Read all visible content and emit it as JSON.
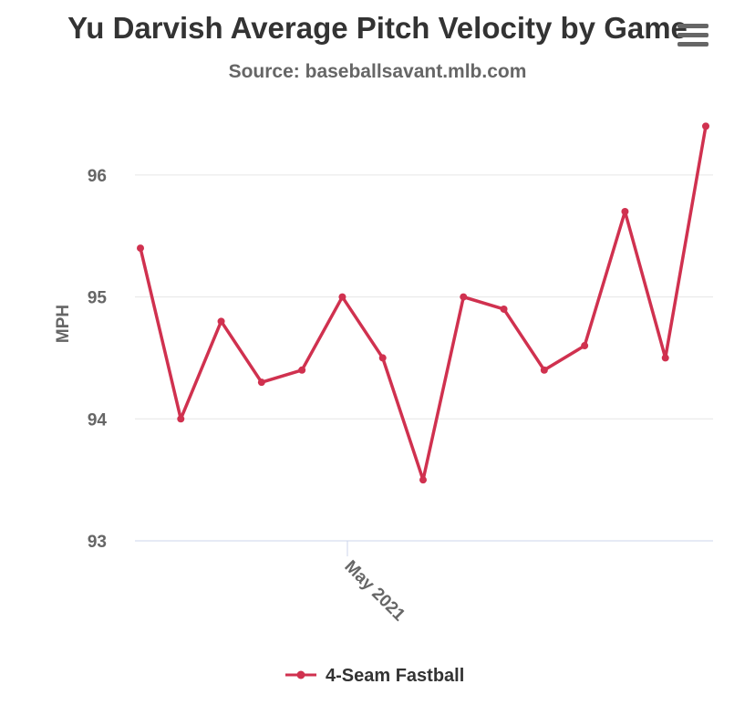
{
  "chart_data": {
    "type": "line",
    "title": "Yu Darvish Average Pitch Velocity by Game",
    "subtitle": "Source: baseballsavant.mlb.com",
    "ylabel": "MPH",
    "xlabel": "",
    "ylim": [
      93,
      96.5
    ],
    "yticks": [
      93,
      94,
      95,
      96
    ],
    "xticks": [
      "May 2021"
    ],
    "grid": true,
    "legend": "bottom",
    "series": [
      {
        "name": "4-Seam Fastball",
        "color": "#d0314f",
        "values": [
          95.4,
          94.0,
          94.8,
          94.3,
          94.4,
          95.0,
          94.5,
          93.5,
          95.0,
          94.9,
          94.4,
          94.6,
          95.7,
          94.5,
          96.4
        ]
      }
    ]
  },
  "menu_icon": "hamburger-menu-icon"
}
